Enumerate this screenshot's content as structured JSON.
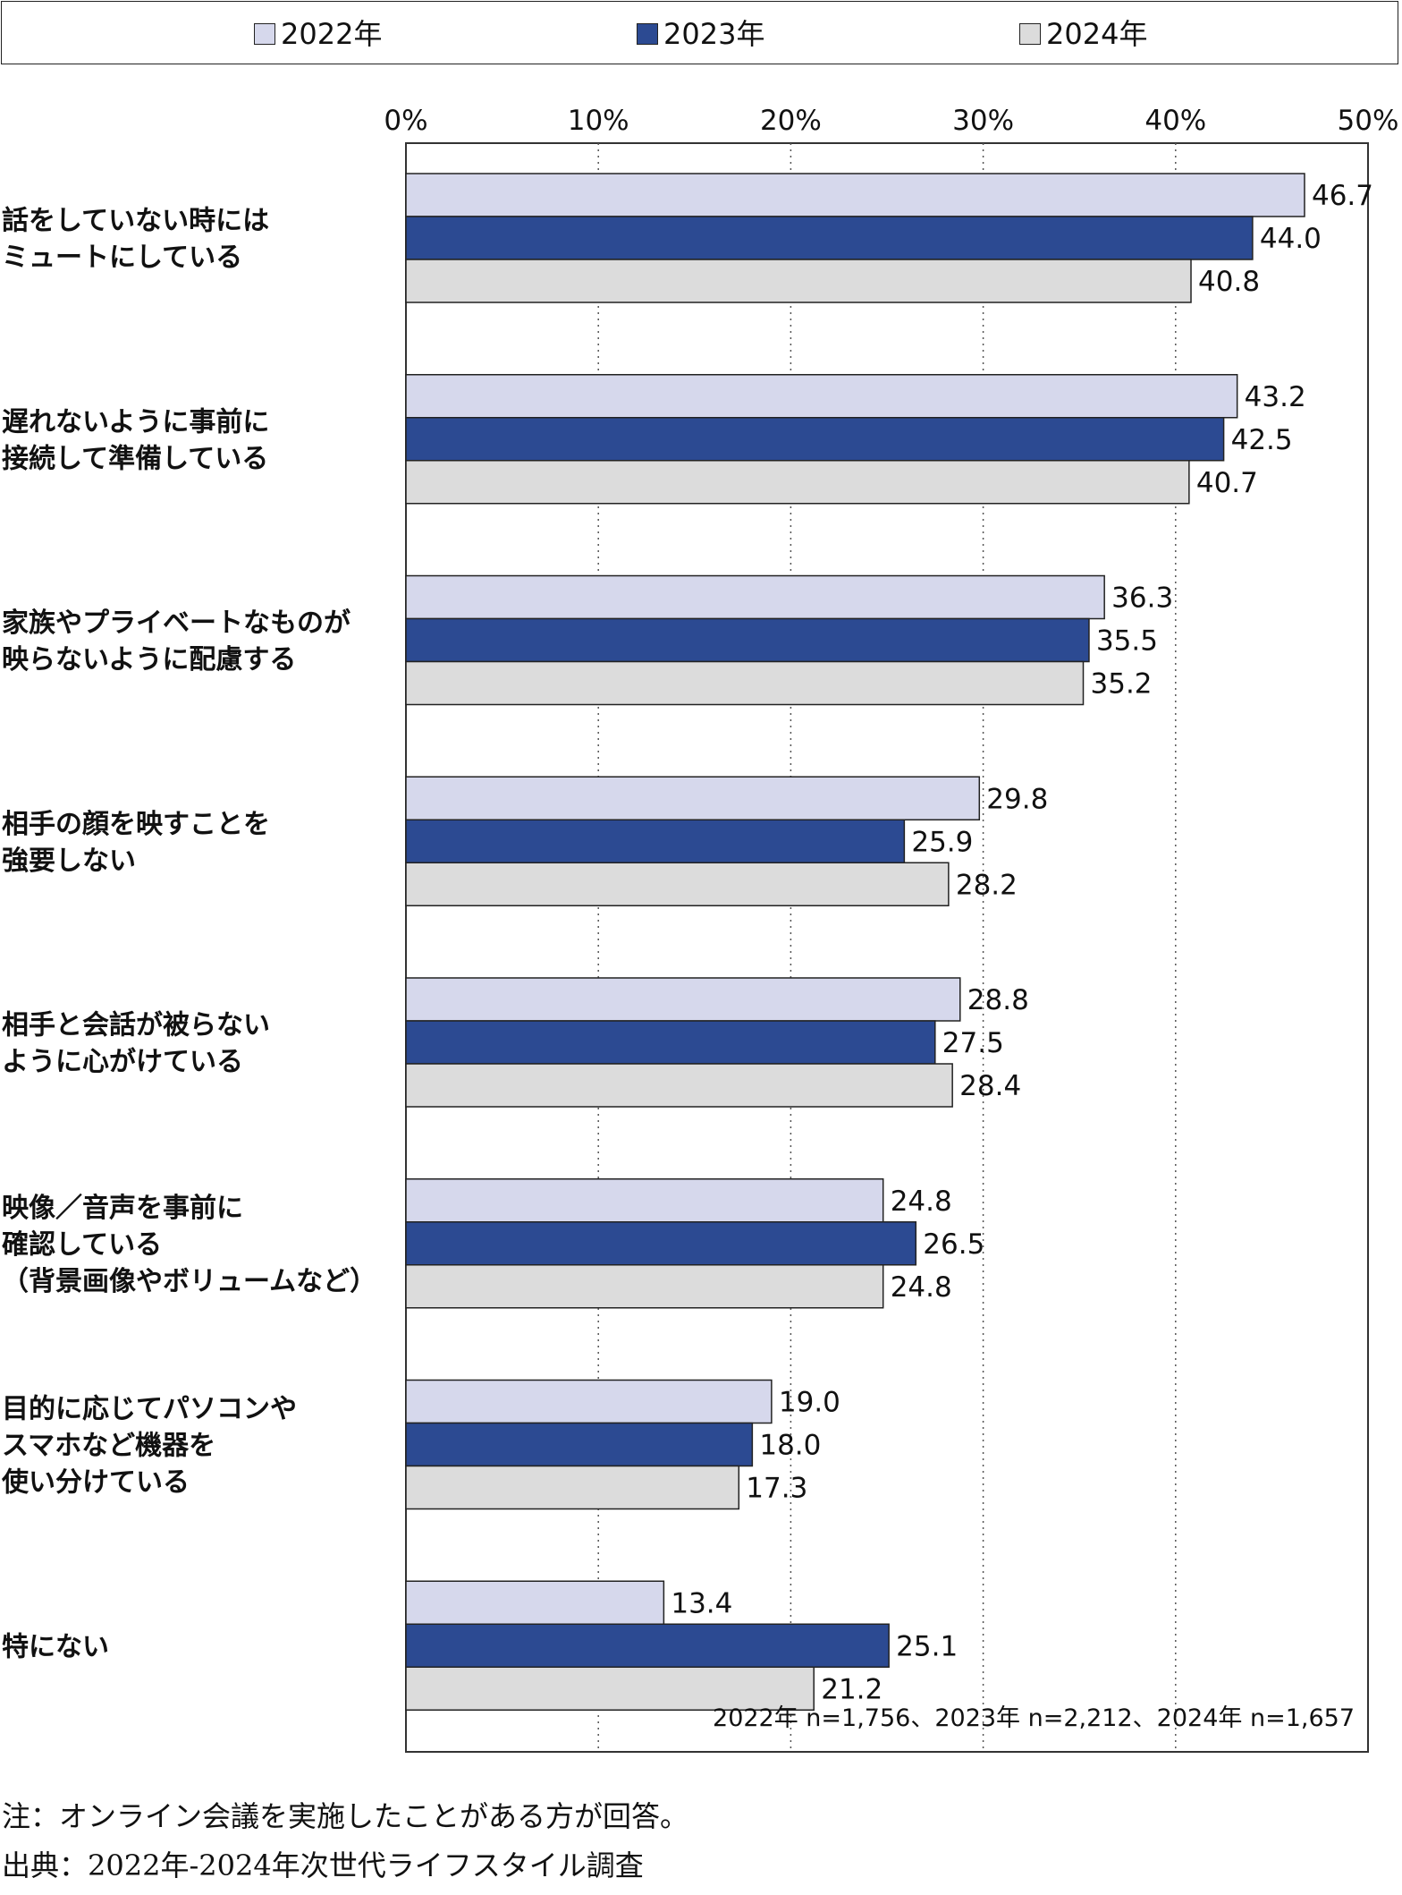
{
  "legend": [
    {
      "label": "2022年",
      "color": "#d6d8ec"
    },
    {
      "label": "2023年",
      "color": "#2c4a92"
    },
    {
      "label": "2024年",
      "color": "#dcdcdc"
    }
  ],
  "chart_data": {
    "type": "bar",
    "orientation": "horizontal",
    "xlim": [
      0,
      50
    ],
    "ticks": [
      "0%",
      "10%",
      "20%",
      "30%",
      "40%",
      "50%"
    ],
    "grid": "dotted-vertical",
    "legend_position": "top",
    "categories": [
      [
        "話をしていない時には",
        "ミュートにしている"
      ],
      [
        "遅れないように事前に",
        "接続して準備している"
      ],
      [
        "家族やプライベートなものが",
        "映らないように配慮する"
      ],
      [
        "相手の顔を映すことを",
        "強要しない"
      ],
      [
        "相手と会話が被らない",
        "ように心がけている"
      ],
      [
        "映像／音声を事前に",
        "確認している",
        "（背景画像やボリュームなど）"
      ],
      [
        "目的に応じてパソコンや",
        "スマホなど機器を",
        "使い分けている"
      ],
      [
        "特にない"
      ]
    ],
    "series": [
      {
        "name": "2022年",
        "values": [
          46.7,
          43.2,
          36.3,
          29.8,
          28.8,
          24.8,
          19.0,
          13.4
        ],
        "labels": [
          "46.7",
          "43.2",
          "36.3",
          "29.8",
          "28.8",
          "24.8",
          "19.0",
          "13.4"
        ]
      },
      {
        "name": "2023年",
        "values": [
          44.0,
          42.5,
          35.5,
          25.9,
          27.5,
          26.5,
          18.0,
          25.1
        ],
        "labels": [
          "44.0",
          "42.5",
          "35.5",
          "25.9",
          "27.5",
          "26.5",
          "18.0",
          "25.1"
        ]
      },
      {
        "name": "2024年",
        "values": [
          40.8,
          40.7,
          35.2,
          28.2,
          28.4,
          24.8,
          17.3,
          21.2
        ],
        "labels": [
          "40.8",
          "40.7",
          "35.2",
          "28.2",
          "28.4",
          "24.8",
          "17.3",
          "21.2"
        ]
      }
    ],
    "sample_note": "2022年 n=1,756、2023年 n=2,212、2024年 n=1,657"
  },
  "notes": {
    "note": "注：オンライン会議を実施したことがある方が回答。",
    "source": "出典：2022年-2024年次世代ライフスタイル調査"
  }
}
